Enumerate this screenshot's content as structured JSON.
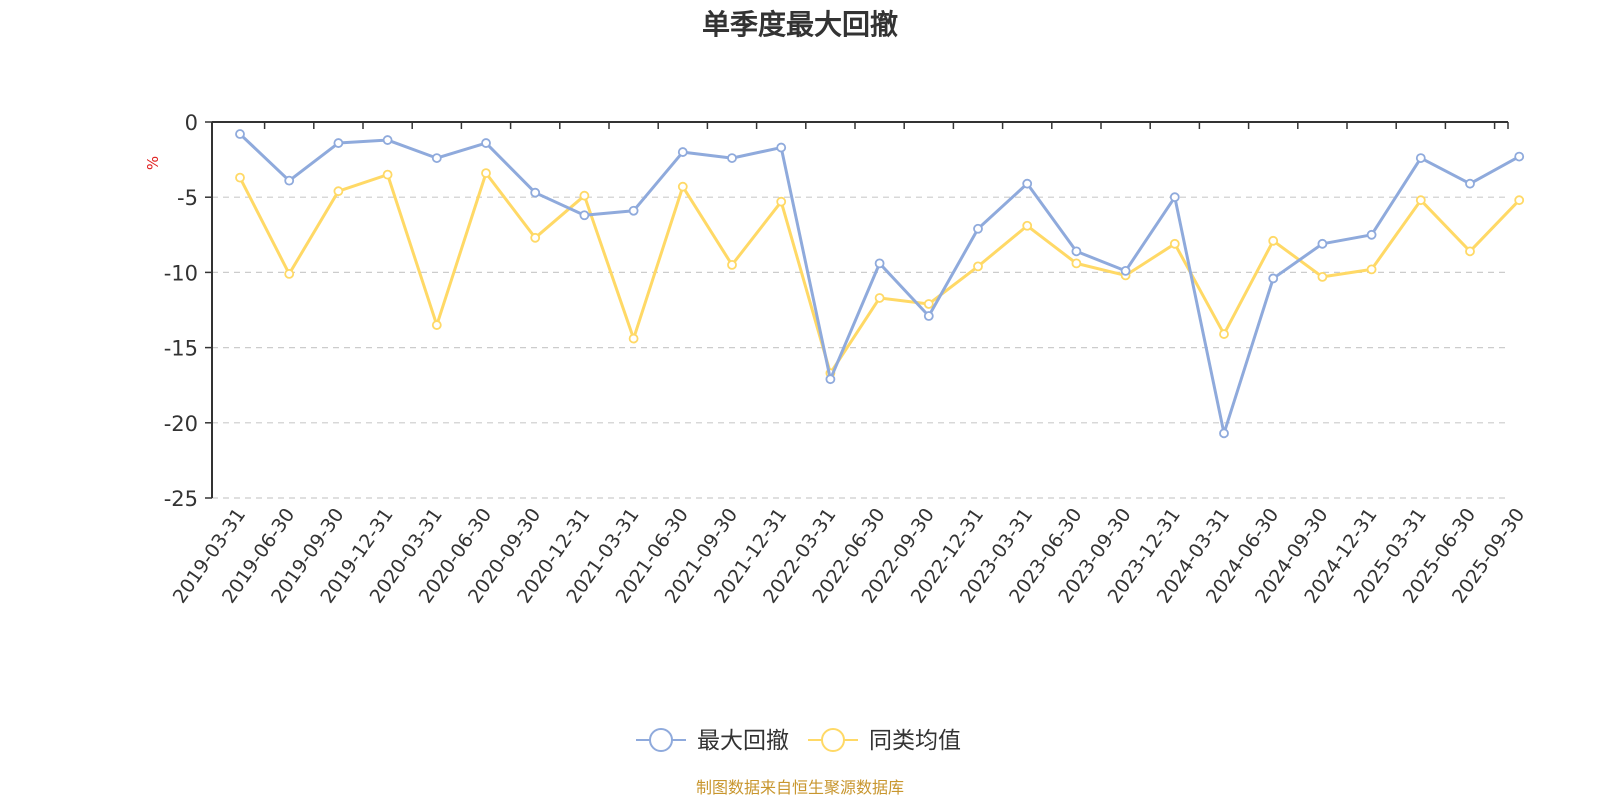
{
  "chart_data": {
    "type": "line",
    "title": "单季度最大回撤",
    "ylabel": "%",
    "ylim": [
      -25,
      0
    ],
    "yticks": [
      0,
      -5,
      -10,
      -15,
      -20,
      -25
    ],
    "grid": true,
    "legend_position": "bottom",
    "categories": [
      "2019-03-31",
      "2019-06-30",
      "2019-09-30",
      "2019-12-31",
      "2020-03-31",
      "2020-06-30",
      "2020-09-30",
      "2020-12-31",
      "2021-03-31",
      "2021-06-30",
      "2021-09-30",
      "2021-12-31",
      "2022-03-31",
      "2022-06-30",
      "2022-09-30",
      "2022-12-31",
      "2023-03-31",
      "2023-06-30",
      "2023-09-30",
      "2023-12-31",
      "2024-03-31",
      "2024-06-30",
      "2024-09-30",
      "2024-12-31",
      "2025-03-31",
      "2025-06-30",
      "2025-09-30"
    ],
    "series": [
      {
        "name": "最大回撤",
        "color": "#8FAADC",
        "values": [
          -0.8,
          -3.9,
          -1.4,
          -1.2,
          -2.4,
          -1.4,
          -4.7,
          -6.2,
          -5.9,
          -2.0,
          -2.4,
          -1.7,
          -17.1,
          -9.4,
          -12.9,
          -7.1,
          -4.1,
          -8.6,
          -9.9,
          -5.0,
          -20.7,
          -10.4,
          -8.1,
          -7.5,
          -2.4,
          -4.1,
          -2.3
        ]
      },
      {
        "name": "同类均值",
        "color": "#FFD966",
        "values": [
          -3.7,
          -10.1,
          -4.6,
          -3.5,
          -13.5,
          -3.4,
          -7.7,
          -4.9,
          -14.4,
          -4.3,
          -9.5,
          -5.3,
          -16.7,
          -11.7,
          -12.1,
          -9.6,
          -6.9,
          -9.4,
          -10.2,
          -8.1,
          -14.1,
          -7.9,
          -10.3,
          -9.8,
          -5.2,
          -8.6,
          -5.2
        ]
      }
    ],
    "footer": "制图数据来自恒生聚源数据库",
    "footer_color": "#C8962E",
    "ylabel_color": "#E02020"
  }
}
